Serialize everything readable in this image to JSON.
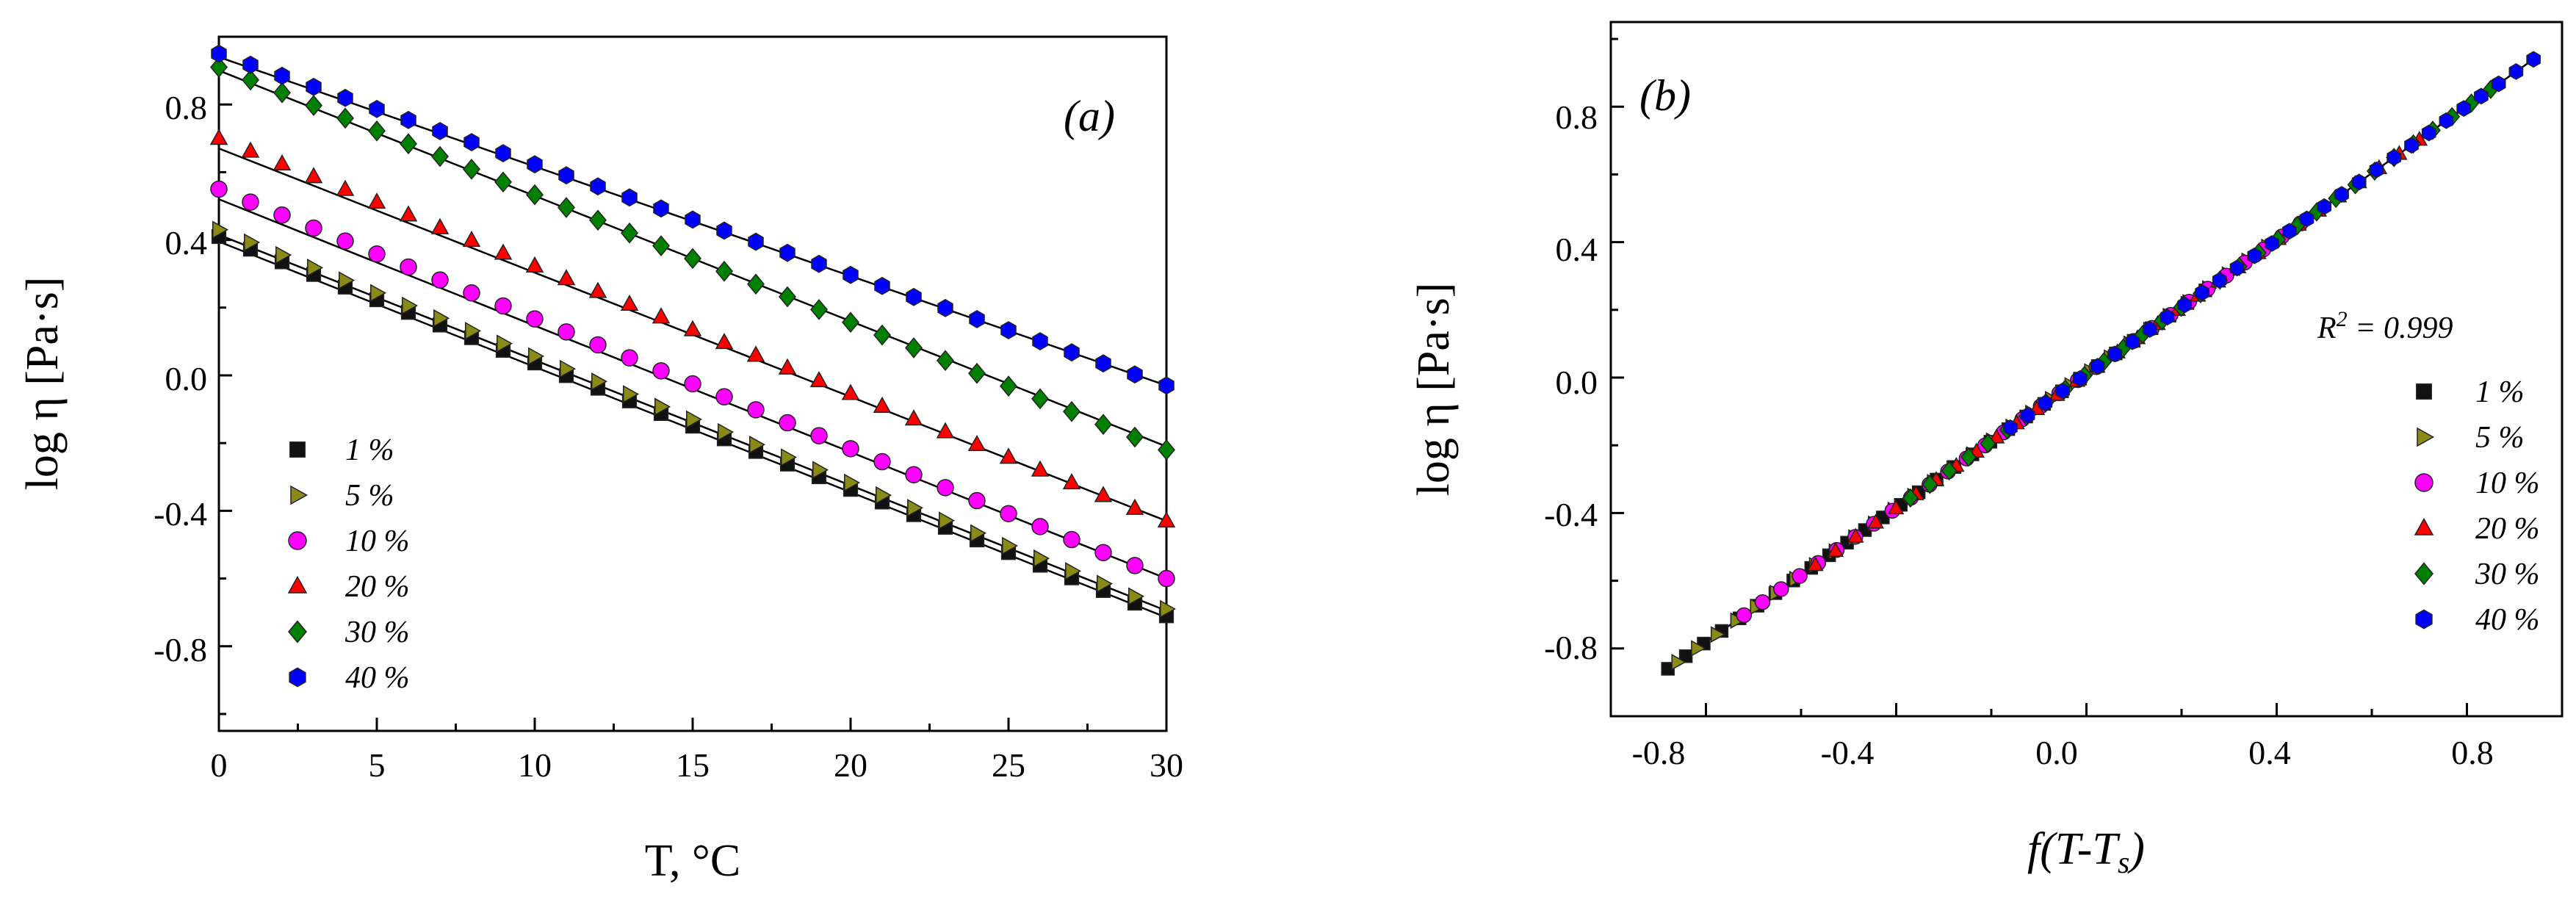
{
  "figure": {
    "panel_a": {
      "tag": "(a)",
      "xlabel": "T, °C",
      "ylabel": "log η [Pa·s]",
      "xticks": [
        "0",
        "5",
        "10",
        "15",
        "20",
        "25",
        "30"
      ],
      "yticks": [
        "0.8",
        "0.4",
        "0.0",
        "-0.4",
        "-0.8"
      ]
    },
    "panel_b": {
      "tag": "(b)",
      "xlabel_main": "f(T-T",
      "xlabel_sub": "s",
      "xlabel_close": ")",
      "ylabel": "log η [Pa·s]",
      "annotation_main": "R",
      "annotation_sup": "2",
      "annotation_rest": " = 0.999",
      "xticks": [
        "-0.8",
        "-0.4",
        "0.0",
        "0.4",
        "0.8"
      ],
      "yticks": [
        "0.8",
        "0.4",
        "0.0",
        "-0.4",
        "-0.8"
      ]
    }
  },
  "chart_data": [
    {
      "type": "scatter",
      "panel": "a",
      "title": "(a)",
      "xlabel": "T, °C",
      "ylabel": "log η [Pa·s]",
      "xlim": [
        0,
        30
      ],
      "ylim": [
        -1.05,
        1.0
      ],
      "legend_position": "bottom-left",
      "fit_lines": true,
      "series": [
        {
          "name": "1 %",
          "marker": "square",
          "color": "#111111",
          "x_start": 0,
          "x_end": 30,
          "x_step": 1,
          "y_start": 0.41,
          "y_end": -0.71,
          "fit": [
            0.395,
            -0.715
          ]
        },
        {
          "name": "5 %",
          "marker": "triangle-right",
          "color": "#8a8a18",
          "x_start": 0,
          "x_end": 30,
          "x_step": 1,
          "y_start": 0.43,
          "y_end": -0.69,
          "fit": [
            0.415,
            -0.695
          ]
        },
        {
          "name": "10 %",
          "marker": "circle",
          "color": "#ff00ff",
          "x_start": 0,
          "x_end": 30,
          "x_step": 1,
          "y_start": 0.55,
          "y_end": -0.6,
          "fit": [
            0.52,
            -0.6
          ]
        },
        {
          "name": "20 %",
          "marker": "triangle-up",
          "color": "#ff0000",
          "x_start": 0,
          "x_end": 30,
          "x_step": 1,
          "y_start": 0.7,
          "y_end": -0.43,
          "fit": [
            0.67,
            -0.43
          ]
        },
        {
          "name": "30 %",
          "marker": "diamond",
          "color": "#008000",
          "x_start": 0,
          "x_end": 30,
          "x_step": 1,
          "y_start": 0.91,
          "y_end": -0.22,
          "fit": [
            0.9,
            -0.21
          ]
        },
        {
          "name": "40 %",
          "marker": "hexagon",
          "color": "#0000ff",
          "x_start": 0,
          "x_end": 30,
          "x_step": 1,
          "y_start": 0.95,
          "y_end": -0.03,
          "fit": [
            0.94,
            -0.03
          ]
        }
      ]
    },
    {
      "type": "scatter",
      "panel": "b",
      "title": "(b)",
      "xlabel": "f(T-Ts)",
      "ylabel": "log η [Pa·s]",
      "xlim": [
        -1.0,
        1.0
      ],
      "ylim": [
        -1.0,
        1.05
      ],
      "legend_position": "right",
      "annotation": "R2 = 0.999",
      "fit_line": [
        [
          -0.88,
          -0.86
        ],
        [
          0.94,
          0.94
        ]
      ],
      "series": [
        {
          "name": "1 %",
          "marker": "square",
          "color": "#111111",
          "x_start": -0.88,
          "x_end": 0.25,
          "points": 31
        },
        {
          "name": "5 %",
          "marker": "triangle-right",
          "color": "#8a8a18",
          "x_start": -0.86,
          "x_end": 0.38,
          "points": 31
        },
        {
          "name": "10 %",
          "marker": "circle",
          "color": "#ff00ff",
          "x_start": -0.72,
          "x_end": 0.45,
          "points": 31
        },
        {
          "name": "20 %",
          "marker": "triangle-up",
          "color": "#ff0000",
          "x_start": -0.57,
          "x_end": 0.7,
          "points": 31
        },
        {
          "name": "30 %",
          "marker": "diamond",
          "color": "#008000",
          "x_start": -0.37,
          "x_end": 0.85,
          "points": 31
        },
        {
          "name": "40 %",
          "marker": "hexagon",
          "color": "#0000ff",
          "x_start": -0.16,
          "x_end": 0.94,
          "points": 31
        }
      ]
    }
  ]
}
